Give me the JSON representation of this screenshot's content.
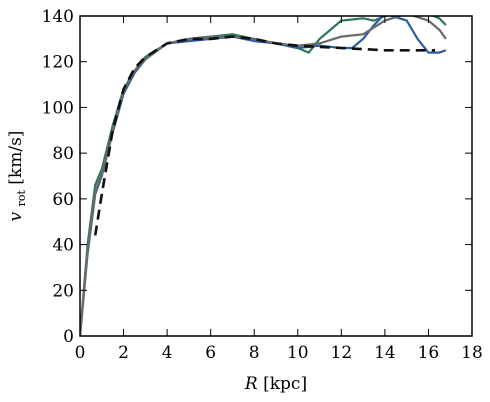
{
  "chart_data": {
    "type": "line",
    "title": "",
    "xlabel": {
      "var": "R",
      "unit": "[kpc]"
    },
    "ylabel": {
      "var": "v",
      "sub": "rot",
      "unit": "[km/s]"
    },
    "xlim": [
      0,
      18
    ],
    "ylim": [
      0,
      140
    ],
    "xticks": [
      "0",
      "2",
      "4",
      "6",
      "8",
      "10",
      "12",
      "14",
      "16",
      "18"
    ],
    "yticks": [
      "0",
      "20",
      "40",
      "60",
      "80",
      "100",
      "120",
      "140"
    ],
    "grid": false,
    "legend": "none",
    "series": [
      {
        "color": "#2b7a57",
        "style": "solid",
        "x": [
          0,
          0.35,
          0.7,
          1.0,
          1.5,
          2.0,
          2.5,
          3.0,
          4.0,
          5.0,
          6.0,
          7.0,
          8.0,
          9.0,
          10.0,
          10.5,
          11.0,
          12.0,
          13.0,
          13.5,
          14.0,
          15.0,
          15.5,
          16.0,
          16.5,
          16.8
        ],
        "y": [
          0,
          40,
          66,
          73,
          92,
          108,
          116,
          122,
          128,
          130,
          131,
          132,
          130,
          128,
          126,
          124,
          130,
          138,
          139,
          138,
          140,
          141,
          142,
          141,
          139,
          136
        ]
      },
      {
        "color": "#2e5fa0",
        "style": "solid",
        "x": [
          0,
          0.35,
          0.7,
          1.0,
          1.5,
          2.0,
          2.5,
          3.0,
          4.0,
          5.0,
          6.0,
          7.0,
          8.0,
          9.0,
          10.0,
          11.0,
          12.0,
          12.5,
          13.0,
          13.5,
          14.0,
          15.0,
          15.5,
          16.0,
          16.5,
          16.8
        ],
        "y": [
          0,
          36,
          62,
          70,
          89,
          106,
          115,
          121,
          128,
          129,
          130,
          131,
          129,
          128,
          126,
          127,
          126,
          126,
          130,
          136,
          141,
          138,
          130,
          124,
          124,
          125
        ]
      },
      {
        "color": "#6a6a6a",
        "style": "solid",
        "x": [
          0,
          0.35,
          0.7,
          1.0,
          1.5,
          2.0,
          2.5,
          3.0,
          4.0,
          5.0,
          6.0,
          7.0,
          8.0,
          9.0,
          10.0,
          11.0,
          12.0,
          13.0,
          13.5,
          14.0,
          15.0,
          16.0,
          16.5,
          16.8
        ],
        "y": [
          0,
          38,
          63,
          71,
          90,
          107,
          116,
          121,
          128,
          130,
          131,
          131,
          130,
          128,
          127,
          128,
          131,
          132,
          135,
          138,
          141,
          138,
          134,
          130
        ]
      },
      {
        "color": "#111111",
        "style": "dashed",
        "x": [
          0.7,
          1.0,
          1.5,
          2.0,
          2.5,
          3.0,
          4.0,
          5.0,
          6.0,
          7.0,
          8.0,
          9.0,
          10.0,
          11.0,
          12.0,
          13.0,
          14.0,
          15.0,
          16.0,
          16.3
        ],
        "y": [
          44,
          62,
          90,
          108,
          117,
          122,
          128,
          130,
          130,
          131,
          130,
          128,
          127,
          126.5,
          126,
          125.5,
          125,
          125,
          125,
          125
        ]
      }
    ]
  }
}
